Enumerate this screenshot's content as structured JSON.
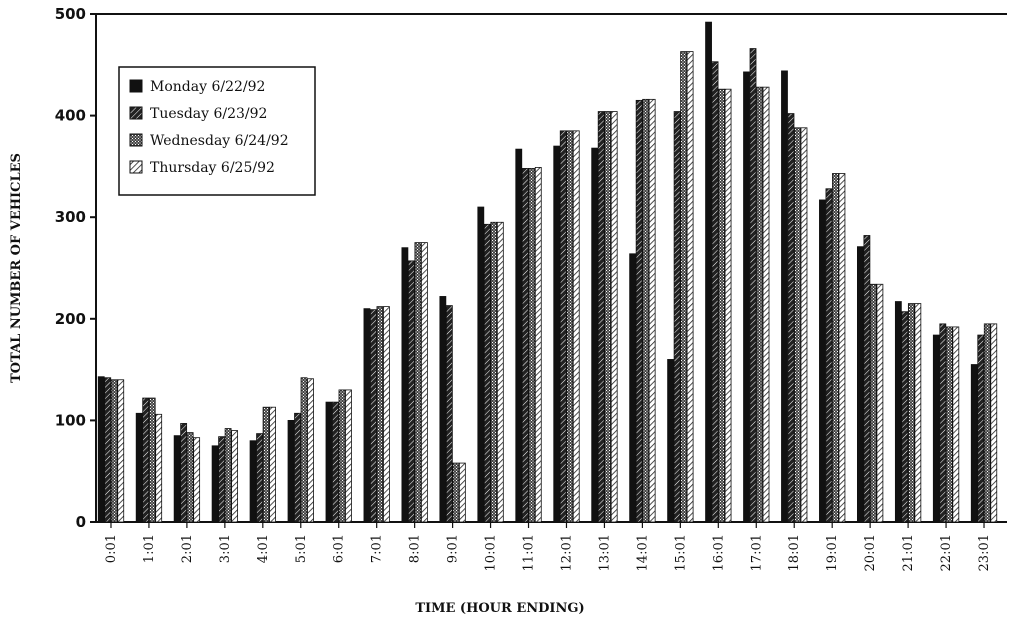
{
  "chart_data": {
    "type": "bar",
    "title": "",
    "xlabel": "TIME (HOUR ENDING)",
    "ylabel": "TOTAL NUMBER OF VEHICLES",
    "ylim": [
      0,
      500
    ],
    "yticks": [
      0,
      100,
      200,
      300,
      400,
      500
    ],
    "grid": false,
    "legend_position": "top-left",
    "categories": [
      "0:01",
      "1:01",
      "2:01",
      "3:01",
      "4:01",
      "5:01",
      "6:01",
      "7:01",
      "8:01",
      "9:01",
      "10:01",
      "11:01",
      "12:01",
      "13:01",
      "14:01",
      "15:01",
      "16:01",
      "17:01",
      "18:01",
      "19:01",
      "20:01",
      "21:01",
      "22:01",
      "23:01"
    ],
    "series": [
      {
        "name": "Monday 6/22/92",
        "color": "#111111",
        "pattern": "solid",
        "values": [
          143,
          107,
          85,
          75,
          80,
          100,
          118,
          210,
          270,
          222,
          310,
          367,
          370,
          368,
          264,
          160,
          492,
          443,
          444,
          317,
          271,
          217,
          184,
          155
        ]
      },
      {
        "name": "Tuesday 6/23/92",
        "color": "#333333",
        "pattern": "hatch",
        "values": [
          142,
          122,
          97,
          84,
          87,
          107,
          118,
          209,
          257,
          213,
          293,
          348,
          385,
          404,
          415,
          404,
          453,
          466,
          402,
          328,
          282,
          207,
          195,
          184
        ]
      },
      {
        "name": "Wednesday 6/24/92",
        "color": "#555555",
        "pattern": "dots",
        "values": [
          140,
          122,
          88,
          92,
          113,
          142,
          130,
          212,
          275,
          58,
          295,
          348,
          385,
          404,
          416,
          463,
          426,
          428,
          388,
          343,
          234,
          215,
          192,
          195
        ]
      },
      {
        "name": "Thursday 6/25/92",
        "color": "#777777",
        "pattern": "lighthatch",
        "values": [
          140,
          106,
          83,
          90,
          113,
          141,
          130,
          212,
          275,
          58,
          295,
          349,
          385,
          404,
          416,
          463,
          426,
          428,
          388,
          343,
          234,
          215,
          192,
          195
        ]
      }
    ]
  }
}
